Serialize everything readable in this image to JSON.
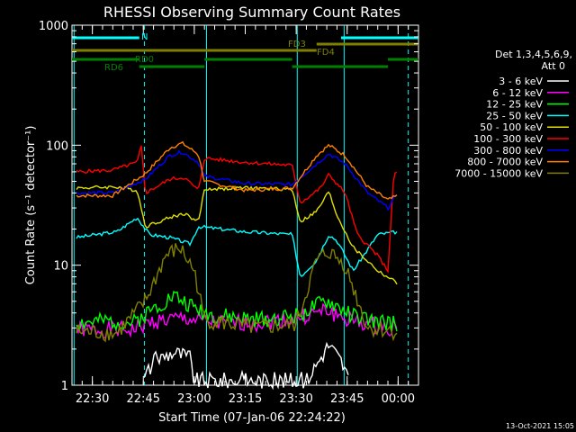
{
  "chart_data": {
    "type": "line",
    "title": "RHESSI Observing Summary Count Rates",
    "xlabel": "Start Time (07-Jan-06 22:24:22)",
    "ylabel": "Count Rate (s⁻¹ detector⁻¹)",
    "y_scale": "log",
    "ylim": [
      1,
      1000
    ],
    "xlim_minutes": [
      22.4,
      24.1
    ],
    "x_ticks": [
      {
        "label": "22:30",
        "value": 22.5
      },
      {
        "label": "22:45",
        "value": 22.75
      },
      {
        "label": "23:00",
        "value": 23.0
      },
      {
        "label": "23:15",
        "value": 23.25
      },
      {
        "label": "23:30",
        "value": 23.5
      },
      {
        "label": "23:45",
        "value": 23.75
      },
      {
        "label": "00:00",
        "value": 24.0
      }
    ],
    "y_ticks": [
      {
        "label": "1",
        "value": 1
      },
      {
        "label": "10",
        "value": 10
      },
      {
        "label": "100",
        "value": 100
      },
      {
        "label": "1000",
        "value": 1000
      }
    ],
    "legend_header": [
      "Det 1,3,4,5,6,9,",
      "Att 0"
    ],
    "legend_position": "right",
    "series": [
      {
        "name": "3 - 6 keV",
        "color": "#ffffff",
        "points": [
          [
            22.75,
            1.1
          ],
          [
            22.8,
            1.6
          ],
          [
            22.9,
            1.9
          ],
          [
            22.98,
            1.7
          ],
          [
            23.0,
            1.1
          ],
          [
            23.55,
            1.1
          ],
          [
            23.6,
            1.5
          ],
          [
            23.66,
            2.2
          ],
          [
            23.72,
            1.6
          ],
          [
            23.76,
            1.1
          ]
        ]
      },
      {
        "name": "6 - 12 keV",
        "color": "#ff00ff",
        "points": [
          [
            22.42,
            2.9
          ],
          [
            22.6,
            2.9
          ],
          [
            22.7,
            2.9
          ],
          [
            22.8,
            3.4
          ],
          [
            22.95,
            3.6
          ],
          [
            23.1,
            3.3
          ],
          [
            23.3,
            3.3
          ],
          [
            23.5,
            3.6
          ],
          [
            23.65,
            4.2
          ],
          [
            23.75,
            3.5
          ],
          [
            23.9,
            3.1
          ],
          [
            24.0,
            3.0
          ]
        ]
      },
      {
        "name": "12 - 25 keV",
        "color": "#00ff00",
        "points": [
          [
            22.42,
            3.3
          ],
          [
            22.6,
            3.4
          ],
          [
            22.7,
            3.3
          ],
          [
            22.8,
            4.4
          ],
          [
            22.9,
            5.6
          ],
          [
            23.0,
            4.4
          ],
          [
            23.1,
            3.8
          ],
          [
            23.3,
            3.5
          ],
          [
            23.5,
            3.8
          ],
          [
            23.65,
            5.0
          ],
          [
            23.78,
            3.8
          ],
          [
            23.9,
            3.3
          ],
          [
            24.0,
            3.3
          ]
        ]
      },
      {
        "name": "25 - 50 keV",
        "color": "#00ffff",
        "points": [
          [
            22.42,
            17
          ],
          [
            22.62,
            19
          ],
          [
            22.72,
            25
          ],
          [
            22.78,
            18
          ],
          [
            22.88,
            17
          ],
          [
            22.98,
            15
          ],
          [
            23.02,
            21
          ],
          [
            23.25,
            19
          ],
          [
            23.48,
            18
          ],
          [
            23.52,
            8
          ],
          [
            23.6,
            11
          ],
          [
            23.66,
            18
          ],
          [
            23.7,
            16
          ],
          [
            23.78,
            9
          ],
          [
            23.9,
            18
          ],
          [
            24.0,
            19
          ]
        ]
      },
      {
        "name": "50 - 100 keV",
        "color": "#e0e000",
        "points": [
          [
            22.42,
            44
          ],
          [
            22.62,
            45
          ],
          [
            22.72,
            42
          ],
          [
            22.76,
            21
          ],
          [
            22.88,
            25
          ],
          [
            22.95,
            27
          ],
          [
            23.02,
            23
          ],
          [
            23.05,
            43
          ],
          [
            23.25,
            44
          ],
          [
            23.48,
            43
          ],
          [
            23.52,
            23
          ],
          [
            23.6,
            28
          ],
          [
            23.66,
            41
          ],
          [
            23.7,
            26
          ],
          [
            23.78,
            14
          ],
          [
            23.9,
            9
          ],
          [
            24.0,
            7
          ]
        ]
      },
      {
        "name": "100 - 300 keV",
        "color": "#ff0000",
        "points": [
          [
            22.42,
            60
          ],
          [
            22.6,
            62
          ],
          [
            22.72,
            72
          ],
          [
            22.74,
            98
          ],
          [
            22.76,
            40
          ],
          [
            22.88,
            52
          ],
          [
            22.95,
            54
          ],
          [
            23.02,
            42
          ],
          [
            23.05,
            78
          ],
          [
            23.25,
            72
          ],
          [
            23.48,
            68
          ],
          [
            23.52,
            33
          ],
          [
            23.62,
            44
          ],
          [
            23.66,
            57
          ],
          [
            23.74,
            40
          ],
          [
            23.8,
            18
          ],
          [
            23.9,
            12
          ],
          [
            23.95,
            9
          ],
          [
            23.98,
            60
          ],
          [
            24.0,
            58
          ]
        ]
      },
      {
        "name": "300 - 800 keV",
        "color": "#0000ff",
        "points": [
          [
            22.42,
            40
          ],
          [
            22.6,
            40
          ],
          [
            22.76,
            52
          ],
          [
            22.88,
            82
          ],
          [
            22.94,
            88
          ],
          [
            23.02,
            72
          ],
          [
            23.05,
            55
          ],
          [
            23.25,
            48
          ],
          [
            23.48,
            47
          ],
          [
            23.6,
            70
          ],
          [
            23.66,
            85
          ],
          [
            23.74,
            70
          ],
          [
            23.85,
            40
          ],
          [
            23.95,
            30
          ],
          [
            24.0,
            40
          ]
        ]
      },
      {
        "name": "800 - 7000 keV",
        "color": "#ff8000",
        "points": [
          [
            22.42,
            38
          ],
          [
            22.6,
            38
          ],
          [
            22.76,
            58
          ],
          [
            22.88,
            95
          ],
          [
            22.94,
            104
          ],
          [
            23.02,
            84
          ],
          [
            23.05,
            50
          ],
          [
            23.25,
            42
          ],
          [
            23.48,
            44
          ],
          [
            23.6,
            82
          ],
          [
            23.66,
            100
          ],
          [
            23.74,
            82
          ],
          [
            23.85,
            45
          ],
          [
            23.95,
            35
          ],
          [
            24.0,
            38
          ]
        ]
      },
      {
        "name": "7000 - 15000 keV",
        "color": "#808000",
        "points": [
          [
            22.42,
            2.8
          ],
          [
            22.62,
            2.7
          ],
          [
            22.76,
            5
          ],
          [
            22.86,
            12
          ],
          [
            22.93,
            14
          ],
          [
            23.0,
            9
          ],
          [
            23.05,
            3.5
          ],
          [
            23.3,
            3
          ],
          [
            23.5,
            3.2
          ],
          [
            23.6,
            11
          ],
          [
            23.66,
            13
          ],
          [
            23.74,
            10
          ],
          [
            23.85,
            3
          ],
          [
            24.0,
            2.8
          ]
        ]
      }
    ],
    "annotations": [
      {
        "text": "N",
        "color": "#00ffff"
      },
      {
        "text": "FD3",
        "color": "#808000"
      },
      {
        "text": "FD4",
        "color": "#808000"
      },
      {
        "text": "RD0",
        "color": "#008000"
      },
      {
        "text": "RD6",
        "color": "#008000"
      }
    ],
    "flag_bars": [
      {
        "color": "#00ffff",
        "level": 0,
        "ranges": [
          [
            22.4,
            22.73
          ],
          [
            23.72,
            24.1
          ]
        ]
      },
      {
        "color": "#808000",
        "level": 1,
        "ranges": [
          [
            23.6,
            24.1
          ]
        ]
      },
      {
        "color": "#808000",
        "level": 2,
        "ranges": [
          [
            22.4,
            23.6
          ]
        ]
      },
      {
        "color": "#008000",
        "level": 3,
        "ranges": [
          [
            22.4,
            22.73
          ],
          [
            23.05,
            23.48
          ],
          [
            23.95,
            24.1
          ]
        ]
      },
      {
        "color": "#008000",
        "level": 4,
        "ranges": [
          [
            22.73,
            23.05
          ],
          [
            23.48,
            23.95
          ]
        ]
      }
    ],
    "vlines": [
      {
        "x": 22.41,
        "color": "#00ffff",
        "style": "solid"
      },
      {
        "x": 22.755,
        "color": "#00ffff",
        "style": "dashed"
      },
      {
        "x": 23.06,
        "color": "#00ffff",
        "style": "solid"
      },
      {
        "x": 23.505,
        "color": "#00ffff",
        "style": "solid"
      },
      {
        "x": 23.735,
        "color": "#00ffff",
        "style": "solid"
      },
      {
        "x": 24.05,
        "color": "#00ffff",
        "style": "dashed"
      }
    ],
    "timestamp": "13-Oct-2021 15:05"
  }
}
